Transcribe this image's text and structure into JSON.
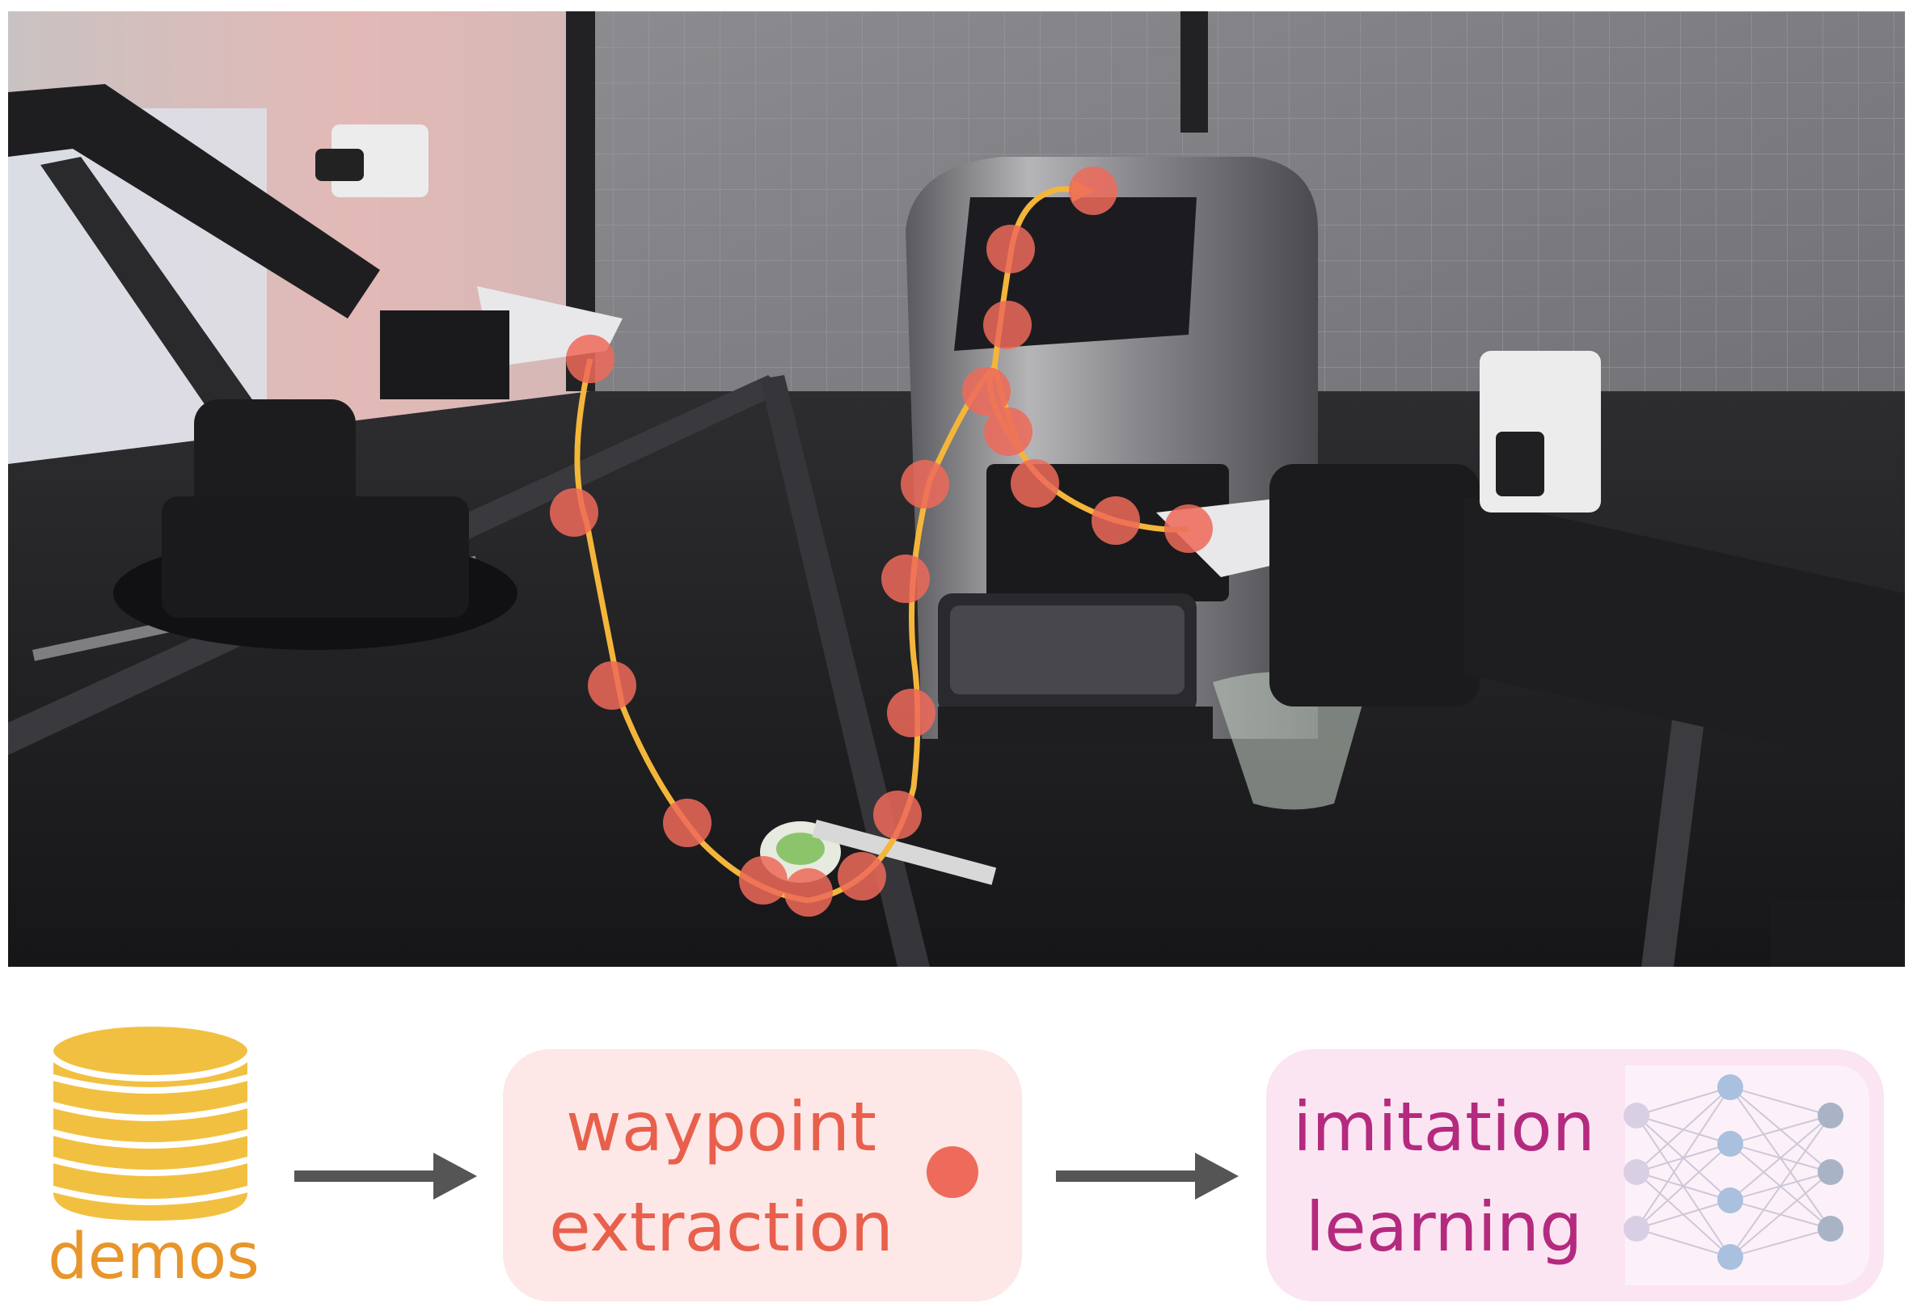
{
  "labels": {
    "demos": "demos",
    "waypoint": [
      "waypoint",
      "extraction"
    ],
    "imitation": [
      "imitation",
      "learning"
    ]
  },
  "colors": {
    "demos": "#f2c040",
    "demos_text": "#e8952a",
    "waypoint_text": "#e8604c",
    "waypoint_dot": "#ee6a5a",
    "imitation_text": "#b42a7e",
    "trajectory": "#f4b63a",
    "arrow": "#555555"
  }
}
